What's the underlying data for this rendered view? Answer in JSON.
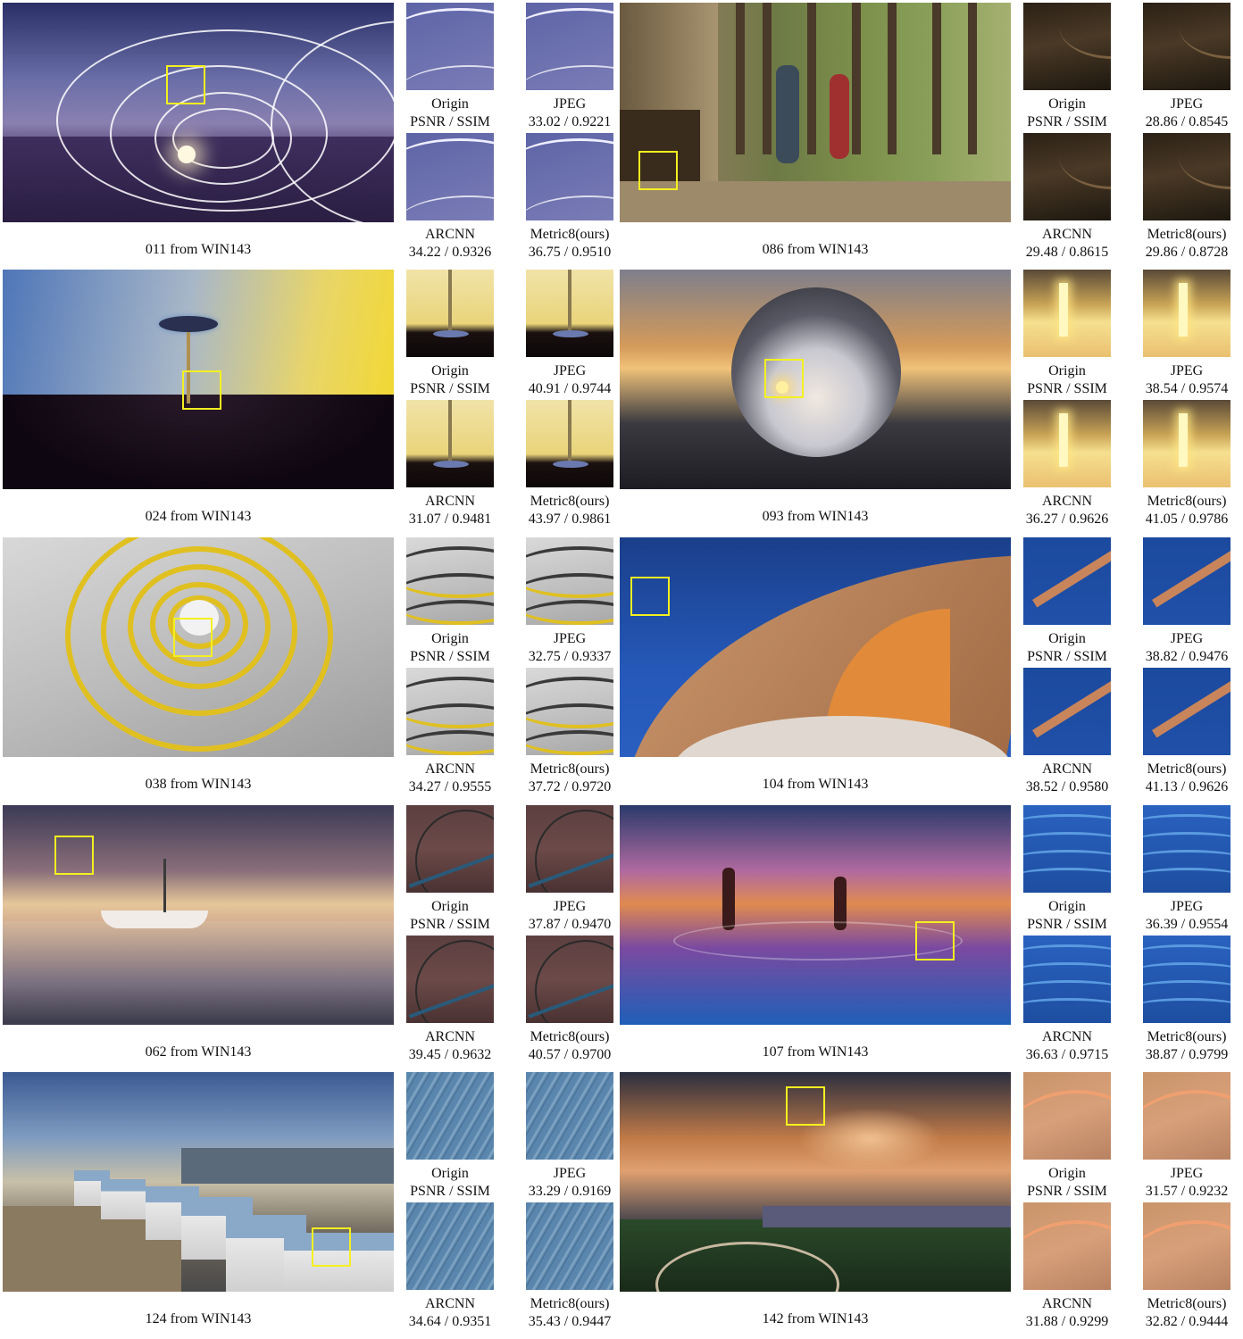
{
  "figures": [
    {
      "id": "011",
      "caption": "011 from WIN143",
      "labels": {
        "origin": "Origin",
        "metric_hdr": "PSNR / SSIM",
        "jpeg": "JPEG",
        "jpeg_val": "33.02 / 0.9221",
        "arcnn": "ARCNN",
        "arcnn_val": "34.22 / 0.9326",
        "ours": "Metric8(ours)",
        "ours_val": "36.75 / 0.9510"
      }
    },
    {
      "id": "086",
      "caption": "086 from WIN143",
      "labels": {
        "origin": "Origin",
        "metric_hdr": "PSNR / SSIM",
        "jpeg": "JPEG",
        "jpeg_val": "28.86 / 0.8545",
        "arcnn": "ARCNN",
        "arcnn_val": "29.48 / 0.8615",
        "ours": "Metric8(ours)",
        "ours_val": "29.86 / 0.8728"
      }
    },
    {
      "id": "024",
      "caption": "024 from WIN143",
      "labels": {
        "origin": "Origin",
        "metric_hdr": "PSNR / SSIM",
        "jpeg": "JPEG",
        "jpeg_val": "40.91 / 0.9744",
        "arcnn": "ARCNN",
        "arcnn_val": "31.07 / 0.9481",
        "ours": "Metric8(ours)",
        "ours_val": "43.97 / 0.9861"
      }
    },
    {
      "id": "093",
      "caption": "093 from WIN143",
      "labels": {
        "origin": "Origin",
        "metric_hdr": "PSNR / SSIM",
        "jpeg": "JPEG",
        "jpeg_val": "38.54 / 0.9574",
        "arcnn": "ARCNN",
        "arcnn_val": "36.27 / 0.9626",
        "ours": "Metric8(ours)",
        "ours_val": "41.05 / 0.9786"
      }
    },
    {
      "id": "038",
      "caption": "038 from WIN143",
      "labels": {
        "origin": "Origin",
        "metric_hdr": "PSNR / SSIM",
        "jpeg": "JPEG",
        "jpeg_val": "32.75 / 0.9337",
        "arcnn": "ARCNN",
        "arcnn_val": "34.27 / 0.9555",
        "ours": "Metric8(ours)",
        "ours_val": "37.72 / 0.9720"
      }
    },
    {
      "id": "104",
      "caption": "104 from WIN143",
      "labels": {
        "origin": "Origin",
        "metric_hdr": "PSNR / SSIM",
        "jpeg": "JPEG",
        "jpeg_val": "38.82 / 0.9476",
        "arcnn": "ARCNN",
        "arcnn_val": "38.52 / 0.9580",
        "ours": "Metric8(ours)",
        "ours_val": "41.13 / 0.9626"
      }
    },
    {
      "id": "062",
      "caption": "062 from WIN143",
      "labels": {
        "origin": "Origin",
        "metric_hdr": "PSNR / SSIM",
        "jpeg": "JPEG",
        "jpeg_val": "37.87 / 0.9470",
        "arcnn": "ARCNN",
        "arcnn_val": "39.45 / 0.9632",
        "ours": "Metric8(ours)",
        "ours_val": "40.57 / 0.9700"
      }
    },
    {
      "id": "107",
      "caption": "107 from WIN143",
      "labels": {
        "origin": "Origin",
        "metric_hdr": "PSNR / SSIM",
        "jpeg": "JPEG",
        "jpeg_val": "36.39 / 0.9554",
        "arcnn": "ARCNN",
        "arcnn_val": "36.63 / 0.9715",
        "ours": "Metric8(ours)",
        "ours_val": "38.87 / 0.9799"
      }
    },
    {
      "id": "124",
      "caption": "124 from WIN143",
      "labels": {
        "origin": "Origin",
        "metric_hdr": "PSNR / SSIM",
        "jpeg": "JPEG",
        "jpeg_val": "33.29 / 0.9169",
        "arcnn": "ARCNN",
        "arcnn_val": "34.64 / 0.9351",
        "ours": "Metric8(ours)",
        "ours_val": "35.43 / 0.9447"
      }
    },
    {
      "id": "142",
      "caption": "142 from WIN143",
      "labels": {
        "origin": "Origin",
        "metric_hdr": "PSNR / SSIM",
        "jpeg": "JPEG",
        "jpeg_val": "31.57 / 0.9232",
        "arcnn": "ARCNN",
        "arcnn_val": "31.88 / 0.9299",
        "ours": "Metric8(ours)",
        "ours_val": "32.82 / 0.9444"
      }
    }
  ],
  "styles": {
    "highlight_box": "#f4f020",
    "scenes": {
      "011": {
        "main": "linear-gradient(180deg,#2a2f66 0%,#6a6ea8 35%,#8a80b0 55%,#4a3a6a 70%,#3a2a55 100%)",
        "crop": "linear-gradient(160deg,#5d64a6 0%,#7a7cb6 100%)"
      },
      "086": {
        "main": "linear-gradient(90deg,#5a4c36 0%,#8a7a5a 20%,#6e7a46 40%,#7b8e4a 60%,#8aa05a 80%,#a5b070 100%)",
        "crop": "linear-gradient(170deg,#2b2116 0%,#4a3926 45%,#1e1810 100%)"
      },
      "024": {
        "main": "linear-gradient(100deg,#4f76b8 0%,#a8b7c8 45%,#e8d56a 75%,#f3d92a 100%)",
        "crop": "linear-gradient(180deg,#f1e3a8 0%,#e9d47a 62%,#1a1010 72%,#0d0808 100%)"
      },
      "093": {
        "main": "linear-gradient(180deg,#7d7f8c 0%,#d49a5a 35%,#f0c27a 45%,#3a3a40 70%,#1c1c22 100%)",
        "crop": "linear-gradient(180deg,#5a4a38 0%,#c9a456 40%,#f6e090 60%,#e9c070 100%)"
      },
      "038": {
        "main": "linear-gradient(160deg,#d8d8d8 0%,#bcbcbc 50%,#9c9c9c 100%)",
        "crop": "linear-gradient(170deg,#d9d9d9 0%,#bdbdbd 60%,#a8a8a8 100%)"
      },
      "104": {
        "main": "linear-gradient(180deg,#1a3f8a 0%,#2558b8 60%,#2a5fbf 100%)",
        "crop": "linear-gradient(180deg,#1b4a9e 0%,#2050a8 100%)"
      },
      "062": {
        "main": "linear-gradient(180deg,#3b3a55 0%,#8a6f7a 30%,#e6c79a 45%,#c89a8a 60%,#4a4a5a 100%)",
        "crop": "linear-gradient(180deg,#5c3f40 0%,#6b4a48 50%,#4a3232 100%)"
      },
      "107": {
        "main": "linear-gradient(180deg,#2a3a6a 0%,#b06aa0 30%,#e08a50 45%,#7a4aa0 65%,#1f5fb8 100%)",
        "crop": "linear-gradient(180deg,#2a62c0 0%,#1d4ea0 100%)"
      },
      "124": {
        "main": "linear-gradient(180deg,#3b5a92 0%,#7f9cc0 30%,#c8c0a8 50%,#6a6258 75%,#4a4a4a 100%)",
        "crop": "repeating-linear-gradient(120deg,#5a86ad 0px,#5a86ad 6px,#86aac8 8px,#3e6a92 12px)"
      },
      "142": {
        "main": "linear-gradient(180deg,#2a2e3e 0%,#c07a48 30%,#e0a070 45%,#3a3e4a 70%,#1e3a1e 100%)",
        "crop": "linear-gradient(160deg,#c9946a 0%,#d8a07a 50%,#b88262 100%)"
      }
    }
  }
}
